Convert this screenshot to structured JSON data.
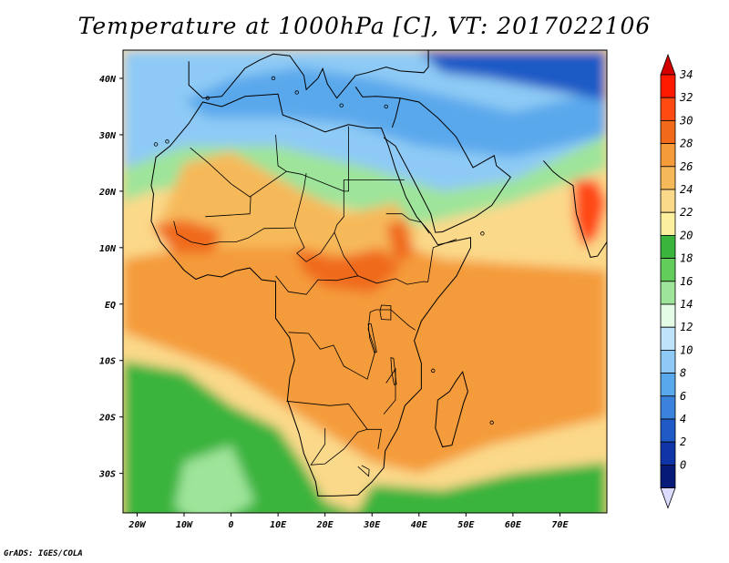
{
  "title": "Temperature at 1000hPa [C], VT: 2017022106",
  "credit": "GrADS: IGES/COLA",
  "lon_ticks": [
    "20W",
    "10W",
    "0",
    "10E",
    "20E",
    "30E",
    "40E",
    "50E",
    "60E",
    "70E"
  ],
  "lat_ticks": [
    "40N",
    "30N",
    "20N",
    "10N",
    "EQ",
    "10S",
    "20S",
    "30S"
  ],
  "colorbar": {
    "labels": [
      "34",
      "32",
      "30",
      "28",
      "26",
      "24",
      "22",
      "20",
      "18",
      "16",
      "14",
      "12",
      "10",
      "8",
      "6",
      "4",
      "2",
      "0"
    ],
    "colors": [
      "#ff1a00",
      "#ff4a12",
      "#f06a1a",
      "#f49b3a",
      "#f6b95a",
      "#fbd98a",
      "#fcef9e",
      "#3ab43c",
      "#62cd5a",
      "#9ee49a",
      "#e4fbe6",
      "#bfe3fb",
      "#8ecaf5",
      "#5aa8ec",
      "#3a82dc",
      "#1f5ac6",
      "#0f35a8",
      "#081a78"
    ],
    "top_arrow_color": "#d40000",
    "bottom_arrow_color": "#dcdcff"
  },
  "map": {
    "lon_range": [
      -23,
      80
    ],
    "lat_range": [
      -37,
      45
    ],
    "colors": {
      "ocean_cool": "#8ecaf5",
      "mediterranean": "#5aa8ec",
      "europe_cold": "#1f5ac6",
      "sahara_north": "#9ee49a",
      "sahara": "#f6b95a",
      "sahel_hot": "#f06a1a",
      "tropical": "#f49b3a",
      "ocean_warm": "#fbd98a",
      "south_atlantic": "#3ab43c",
      "india_hot": "#ff4a12"
    }
  }
}
